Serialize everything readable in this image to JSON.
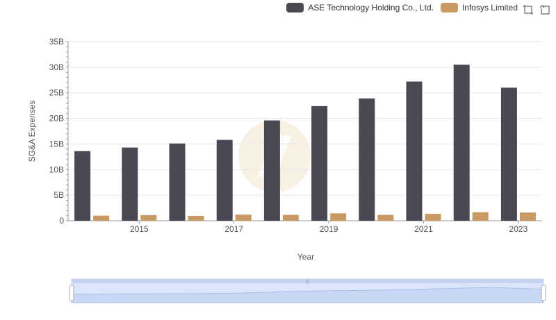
{
  "legend": [
    {
      "label": "ASE Technology Holding Co., Ltd.",
      "color": "#4a4953"
    },
    {
      "label": "Infosys Limited",
      "color": "#c99a63"
    }
  ],
  "toolbox": {
    "zoom_icon": "data-zoom-icon",
    "reset_icon": "zoom-reset-icon"
  },
  "chart_data": {
    "type": "bar",
    "xlabel": "Year",
    "ylabel": "SG&A Expenses",
    "ylim": [
      0,
      35000000000
    ],
    "y_ticks": [
      "0",
      "5B",
      "10B",
      "15B",
      "20B",
      "25B",
      "30B",
      "35B"
    ],
    "x_tick_labels": [
      "2015",
      "2017",
      "2019",
      "2021",
      "2023"
    ],
    "categories": [
      "2014",
      "2015",
      "2016",
      "2017",
      "2018",
      "2019",
      "2020",
      "2021",
      "2022",
      "2023"
    ],
    "series": [
      {
        "name": "ASE Technology Holding Co., Ltd.",
        "color": "#4a4953",
        "values": [
          13600000000,
          14300000000,
          15100000000,
          15800000000,
          19600000000,
          22400000000,
          23900000000,
          27200000000,
          30500000000,
          26000000000
        ]
      },
      {
        "name": "Infosys Limited",
        "color": "#c99a63",
        "values": [
          1000000000,
          1100000000,
          950000000,
          1200000000,
          1150000000,
          1450000000,
          1150000000,
          1350000000,
          1650000000,
          1600000000
        ]
      }
    ],
    "grid": true,
    "legend_position": "top-right",
    "data_zoom": {
      "start": 0,
      "end": 100
    }
  }
}
